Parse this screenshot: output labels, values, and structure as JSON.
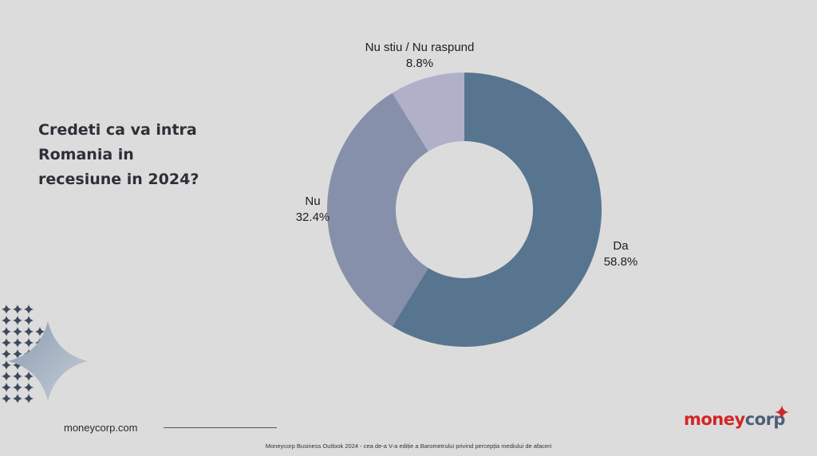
{
  "question": {
    "line1": "Credeti ca va intra",
    "line2": "Romania in",
    "line3": "recesiune in 2024?"
  },
  "website": "moneycorp.com",
  "footer": "Moneycorp Business Outlook 2024 - cea de-a V-a ediție a Barometrului privind percepția mediului de afaceri",
  "logo": {
    "part1": "money",
    "part2": "corp"
  },
  "colors": {
    "background": "#dcdcdc",
    "brand_red": "#d42426",
    "brand_blue": "#4c5f78"
  },
  "chart_data": {
    "type": "pie",
    "donut": true,
    "slices": [
      {
        "label": "Da",
        "value": 58.8,
        "display": "58.8%",
        "color": "#57758f"
      },
      {
        "label": "Nu",
        "value": 32.4,
        "display": "32.4%",
        "color": "#8790ab"
      },
      {
        "label": "Nu stiu / Nu raspund",
        "value": 8.8,
        "display": "8.8%",
        "color": "#b0b0c8"
      }
    ]
  }
}
